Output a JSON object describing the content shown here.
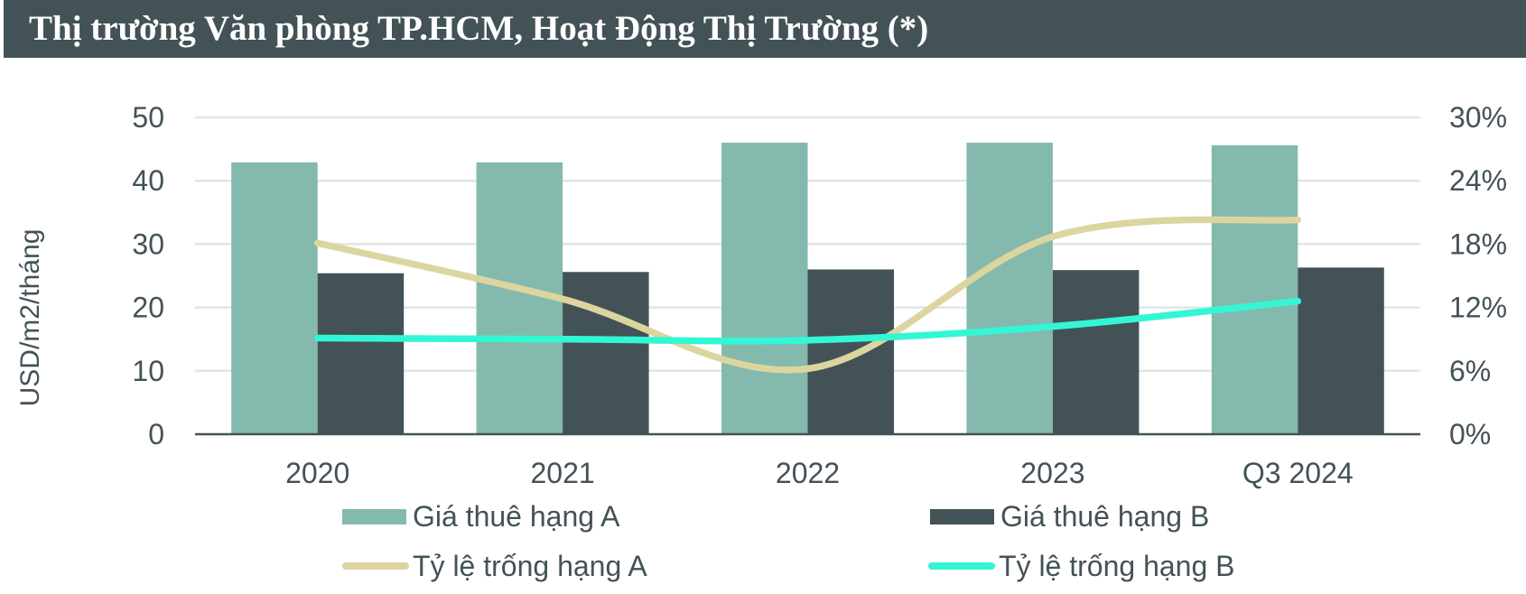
{
  "header": {
    "title": "Thị trường Văn phòng TP.HCM, Hoạt Động Thị Trường (*)"
  },
  "colors": {
    "header_bg": "#435257",
    "text": "#435257",
    "grid": "#e1e6e5",
    "axis": "#435257",
    "rent_a": "#84b9ad",
    "rent_b": "#435257",
    "vacancy_a": "#dcd59f",
    "vacancy_b": "#33f7d4"
  },
  "chart_data": {
    "type": "bar",
    "title": "Thị trường Văn phòng TP.HCM, Hoạt Động Thị Trường (*)",
    "categories": [
      "2020",
      "2021",
      "2022",
      "2023",
      "Q3 2024"
    ],
    "xlabel": "",
    "ylabel": "USD/m2/tháng",
    "ylim": [
      0,
      50
    ],
    "yticks": [
      "0",
      "10",
      "20",
      "30",
      "40",
      "50"
    ],
    "y2label": "",
    "y2lim": [
      0,
      30
    ],
    "y2ticks": [
      "0%",
      "6%",
      "12%",
      "18%",
      "24%",
      "30%"
    ],
    "grid": true,
    "legend_position": "bottom",
    "series": [
      {
        "name": "Giá thuê hạng A",
        "type": "bar",
        "axis": "left",
        "values": [
          42.9,
          42.9,
          46.0,
          46.0,
          45.6
        ]
      },
      {
        "name": "Giá thuê hạng B",
        "type": "bar",
        "axis": "left",
        "values": [
          25.4,
          25.6,
          26.0,
          25.9,
          26.3
        ]
      },
      {
        "name": "Tỷ lệ trống hạng A",
        "type": "line",
        "axis": "right",
        "unit": "%",
        "values": [
          18.1,
          12.8,
          6.2,
          18.7,
          20.3
        ]
      },
      {
        "name": "Tỷ lệ trống hạng B",
        "type": "line",
        "axis": "right",
        "unit": "%",
        "values": [
          9.1,
          9.0,
          8.9,
          10.2,
          12.6
        ]
      }
    ]
  },
  "legend": {
    "items": [
      {
        "label": "Giá thuê hạng A"
      },
      {
        "label": "Giá thuê hạng B"
      },
      {
        "label": "Tỷ lệ trống hạng A"
      },
      {
        "label": "Tỷ lệ trống hạng B"
      }
    ]
  }
}
